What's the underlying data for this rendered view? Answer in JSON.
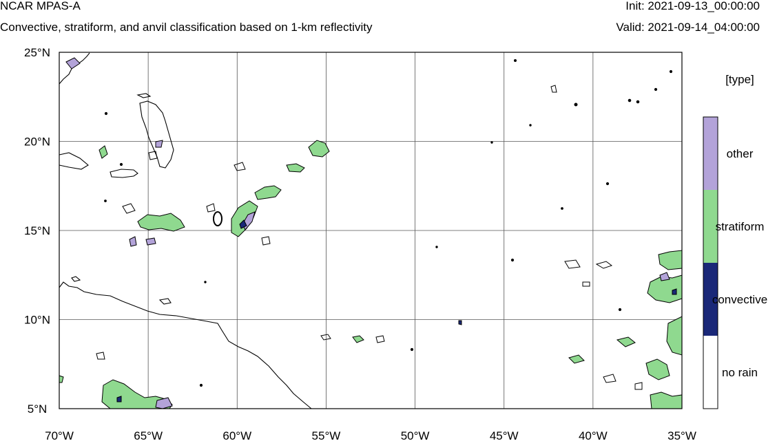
{
  "header": {
    "model": "NCAR MPAS-A",
    "subtitle": "Convective, stratiform, and anvil classification based on 1-km reflectivity",
    "init": "Init: 2021-09-13_00:00:00",
    "valid": "Valid: 2021-09-14_04:00:00"
  },
  "map": {
    "lon_range": [
      -70,
      -35
    ],
    "lat_range": [
      5,
      25
    ],
    "lat_ticks": [
      {
        "value": 25,
        "label": "25°N"
      },
      {
        "value": 20,
        "label": "20°N"
      },
      {
        "value": 15,
        "label": "15°N"
      },
      {
        "value": 10,
        "label": "10°N"
      },
      {
        "value": 5,
        "label": "5°N"
      }
    ],
    "lon_ticks": [
      {
        "value": -70,
        "label": "70°W"
      },
      {
        "value": -65,
        "label": "65°W"
      },
      {
        "value": -60,
        "label": "60°W"
      },
      {
        "value": -55,
        "label": "55°W"
      },
      {
        "value": -50,
        "label": "50°W"
      },
      {
        "value": -45,
        "label": "45°W"
      },
      {
        "value": -40,
        "label": "40°W"
      },
      {
        "value": -35,
        "label": "35°W"
      }
    ],
    "gridlines": true
  },
  "legend": {
    "title": "[type]",
    "entries": [
      {
        "label": "other",
        "color": "#b3a3d9"
      },
      {
        "label": "stratiform",
        "color": "#8fd98f"
      },
      {
        "label": "convective",
        "color": "#1a2878"
      },
      {
        "label": "no rain",
        "color": "#ffffff"
      }
    ]
  },
  "colors": {
    "other": "#b3a3d9",
    "stratiform": "#8fd98f",
    "convective": "#1a2878",
    "outline": "#000000"
  }
}
